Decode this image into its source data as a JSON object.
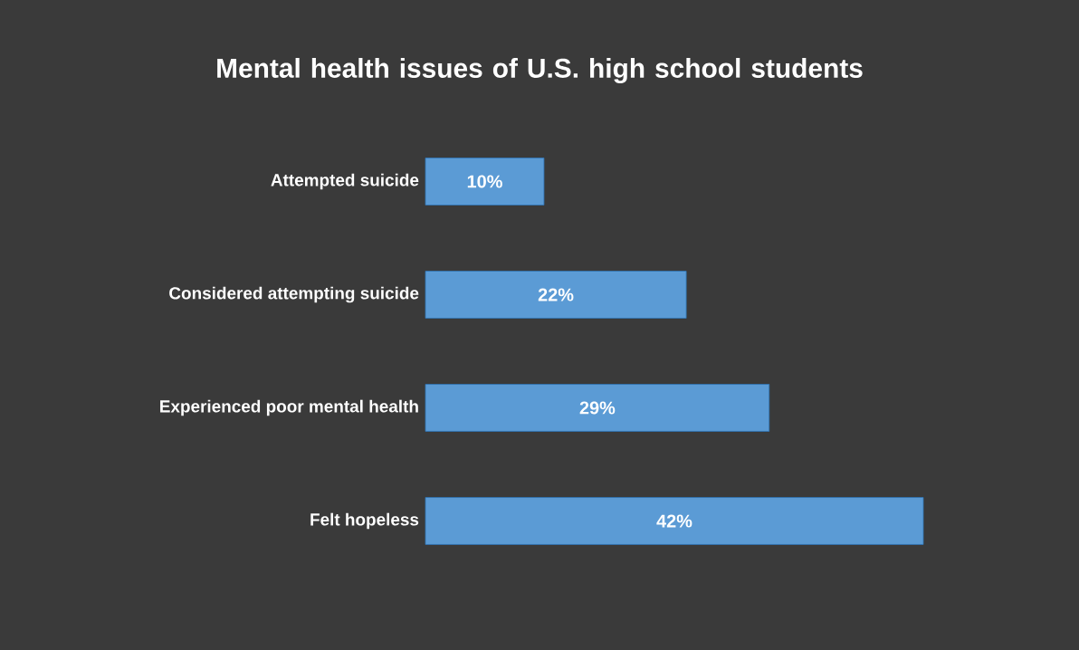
{
  "chart_data": {
    "type": "bar",
    "orientation": "horizontal",
    "title": "Mental health issues of U.S. high school students",
    "categories": [
      "Attempted suicide",
      "Considered attempting suicide",
      "Experienced poor mental health",
      "Felt hopeless"
    ],
    "values": [
      10,
      22,
      29,
      42
    ],
    "value_labels": [
      "10%",
      "22%",
      "29%",
      "42%"
    ],
    "color": "#5b9bd5"
  }
}
